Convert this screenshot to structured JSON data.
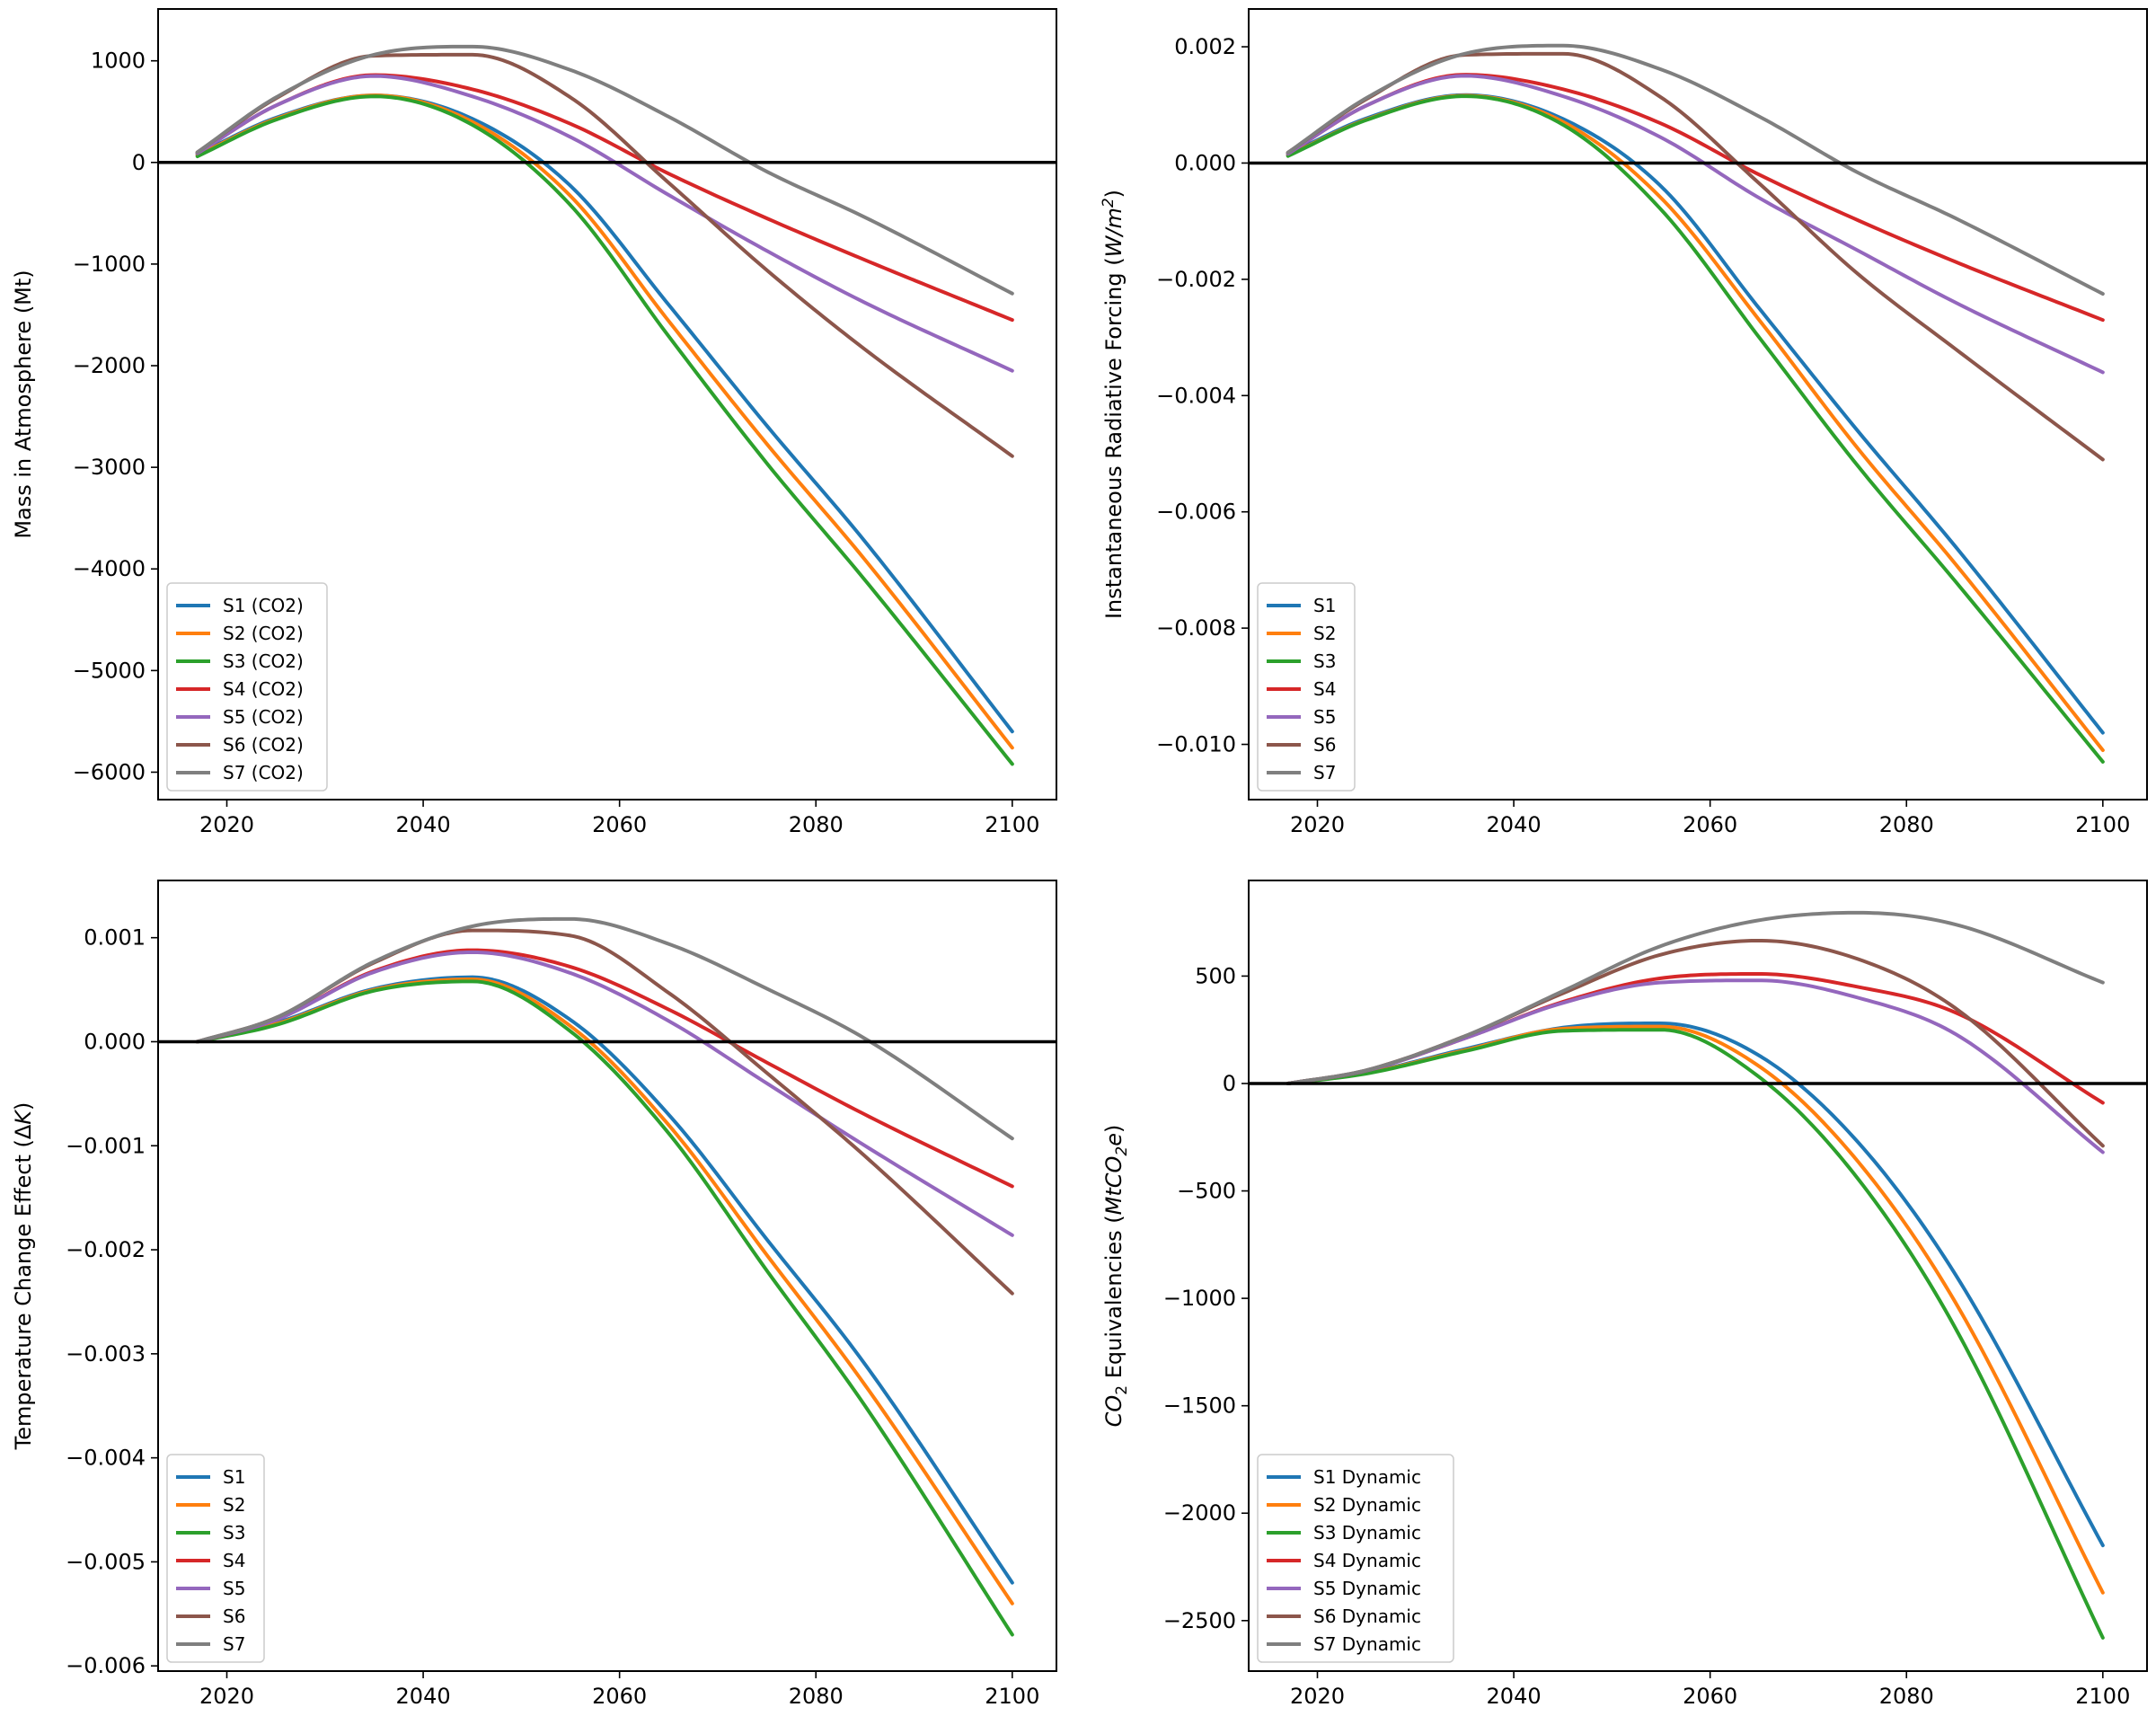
{
  "colors": [
    "#1f77b4",
    "#ff7f0e",
    "#2ca02c",
    "#d62728",
    "#9467bd",
    "#8c564b",
    "#7f7f7f"
  ],
  "chart_data": [
    {
      "type": "line",
      "ylabel": "Mass in Atmosphere (Mt)",
      "xlim": [
        2013,
        2104.5
      ],
      "ylim": [
        -6270,
        1510
      ],
      "xticks": [
        2020,
        2040,
        2060,
        2080,
        2100
      ],
      "xtick_labels": [
        "2020",
        "2040",
        "2060",
        "2080",
        "2100"
      ],
      "yticks": [
        1000,
        0,
        -1000,
        -2000,
        -3000,
        -4000,
        -5000,
        -6000
      ],
      "ytick_labels": [
        "1000",
        "0",
        "−1000",
        "−2000",
        "−3000",
        "−4000",
        "−5000",
        "−6000"
      ],
      "zero_line": true,
      "grid": false,
      "legend_position": "lower-left",
      "x": [
        2017,
        2025,
        2035,
        2045,
        2055,
        2065,
        2075,
        2085,
        2100
      ],
      "series": [
        {
          "name": "S1 (CO2)",
          "values": [
            80,
            440,
            660,
            430,
            -230,
            -1400,
            -2590,
            -3730,
            -5600
          ]
        },
        {
          "name": "S2 (CO2)",
          "values": [
            70,
            430,
            660,
            400,
            -330,
            -1560,
            -2770,
            -3910,
            -5760
          ]
        },
        {
          "name": "S3 (CO2)",
          "values": [
            60,
            420,
            650,
            370,
            -420,
            -1710,
            -2960,
            -4110,
            -5920
          ]
        },
        {
          "name": "S4 (CO2)",
          "values": [
            90,
            560,
            860,
            720,
            380,
            -110,
            -550,
            -960,
            -1550
          ]
        },
        {
          "name": "S5 (CO2)",
          "values": [
            90,
            560,
            850,
            650,
            250,
            -320,
            -870,
            -1380,
            -2050
          ]
        },
        {
          "name": "S6 (CO2)",
          "values": [
            100,
            630,
            1050,
            1060,
            640,
            -200,
            -1060,
            -1840,
            -2890
          ]
        },
        {
          "name": "S7 (CO2)",
          "values": [
            100,
            640,
            1060,
            1140,
            910,
            450,
            -90,
            -540,
            -1290
          ]
        }
      ]
    },
    {
      "type": "line",
      "ylabel": "Instantaneous Radiative Forcing (W/m²)",
      "xlim": [
        2013,
        2104.5
      ],
      "ylim": [
        -0.01095,
        0.00265
      ],
      "xticks": [
        2020,
        2040,
        2060,
        2080,
        2100
      ],
      "xtick_labels": [
        "2020",
        "2040",
        "2060",
        "2080",
        "2100"
      ],
      "yticks": [
        0.002,
        0.0,
        -0.002,
        -0.004,
        -0.006,
        -0.008,
        -0.01
      ],
      "ytick_labels": [
        "0.002",
        "0.000",
        "−0.002",
        "−0.004",
        "−0.006",
        "−0.008",
        "−0.010"
      ],
      "zero_line": true,
      "grid": false,
      "legend_position": "lower-left",
      "x": [
        2017,
        2025,
        2035,
        2045,
        2055,
        2065,
        2075,
        2085,
        2100
      ],
      "series": [
        {
          "name": "S1",
          "values": [
            0.00015,
            0.00077,
            0.00117,
            0.00076,
            -0.0004,
            -0.0025,
            -0.0046,
            -0.0066,
            -0.0098
          ]
        },
        {
          "name": "S2",
          "values": [
            0.00013,
            0.00075,
            0.00116,
            0.00071,
            -0.0006,
            -0.0027,
            -0.0049,
            -0.0069,
            -0.0101
          ]
        },
        {
          "name": "S3",
          "values": [
            0.00012,
            0.00074,
            0.00115,
            0.00066,
            -0.0008,
            -0.003,
            -0.0052,
            -0.0072,
            -0.0103
          ]
        },
        {
          "name": "S4",
          "values": [
            0.00016,
            0.00099,
            0.00152,
            0.00127,
            0.00068,
            -0.0002,
            -0.00098,
            -0.0017,
            -0.0027
          ]
        },
        {
          "name": "S5",
          "values": [
            0.00016,
            0.00099,
            0.0015,
            0.00115,
            0.00044,
            -0.0006,
            -0.0015,
            -0.0024,
            -0.0036
          ]
        },
        {
          "name": "S6",
          "values": [
            0.00018,
            0.0011,
            0.00186,
            0.00188,
            0.00113,
            -0.00035,
            -0.0019,
            -0.0032,
            -0.0051
          ]
        },
        {
          "name": "S7",
          "values": [
            0.00018,
            0.00112,
            0.00188,
            0.00202,
            0.00161,
            0.0008,
            -0.00016,
            -0.00095,
            -0.00225
          ]
        }
      ]
    },
    {
      "type": "line",
      "ylabel": "Temperature Change Effect (ΔK)",
      "xlim": [
        2013,
        2104.5
      ],
      "ylim": [
        -0.00605,
        0.00155
      ],
      "xticks": [
        2020,
        2040,
        2060,
        2080,
        2100
      ],
      "xtick_labels": [
        "2020",
        "2040",
        "2060",
        "2080",
        "2100"
      ],
      "yticks": [
        0.001,
        0.0,
        -0.001,
        -0.002,
        -0.003,
        -0.004,
        -0.005,
        -0.006
      ],
      "ytick_labels": [
        "0.001",
        "0.000",
        "−0.001",
        "−0.002",
        "−0.003",
        "−0.004",
        "−0.005",
        "−0.006"
      ],
      "zero_line": true,
      "grid": false,
      "legend_position": "lower-left",
      "x": [
        2017,
        2025,
        2035,
        2045,
        2055,
        2065,
        2075,
        2085,
        2100
      ],
      "series": [
        {
          "name": "S1",
          "values": [
            0,
            0.00018,
            0.00051,
            0.00062,
            0.00021,
            -0.0007,
            -0.0019,
            -0.0031,
            -0.0052
          ]
        },
        {
          "name": "S2",
          "values": [
            0,
            0.00017,
            0.0005,
            0.0006,
            0.00015,
            -0.0008,
            -0.00205,
            -0.0033,
            -0.0054
          ]
        },
        {
          "name": "S3",
          "values": [
            0,
            0.00016,
            0.00049,
            0.00058,
            0.0001,
            -0.00088,
            -0.0022,
            -0.0035,
            -0.0057
          ]
        },
        {
          "name": "S4",
          "values": [
            0,
            0.00021,
            0.00068,
            0.00088,
            0.00072,
            0.00031,
            -0.0002,
            -0.0007,
            -0.00139
          ]
        },
        {
          "name": "S5",
          "values": [
            0,
            0.00021,
            0.00067,
            0.00086,
            0.00066,
            0.0002,
            -0.0004,
            -0.001,
            -0.00186
          ]
        },
        {
          "name": "S6",
          "values": [
            0,
            0.00023,
            0.00076,
            0.00107,
            0.00102,
            0.00047,
            -0.0003,
            -0.0011,
            -0.00242
          ]
        },
        {
          "name": "S7",
          "values": [
            0,
            0.00023,
            0.00077,
            0.00111,
            0.00118,
            0.00094,
            0.00051,
            3e-05,
            -0.00093
          ]
        }
      ]
    },
    {
      "type": "line",
      "ylabel": "CO₂ Equivalencies (MtCO₂e)",
      "xlim": [
        2013,
        2104.5
      ],
      "ylim": [
        -2735,
        945
      ],
      "xticks": [
        2020,
        2040,
        2060,
        2080,
        2100
      ],
      "xtick_labels": [
        "2020",
        "2040",
        "2060",
        "2080",
        "2100"
      ],
      "yticks": [
        500,
        0,
        -500,
        -1000,
        -1500,
        -2000,
        -2500
      ],
      "ytick_labels": [
        "500",
        "0",
        "−500",
        "−1000",
        "−1500",
        "−2000",
        "−2500"
      ],
      "zero_line": true,
      "grid": false,
      "legend_position": "lower-left",
      "x": [
        2017,
        2025,
        2035,
        2045,
        2055,
        2065,
        2075,
        2085,
        2100
      ],
      "series": [
        {
          "name": "S1 Dynamic",
          "values": [
            0,
            50,
            160,
            260,
            280,
            130,
            -270,
            -890,
            -2150
          ]
        },
        {
          "name": "S2 Dynamic",
          "values": [
            0,
            48,
            155,
            255,
            265,
            80,
            -360,
            -1020,
            -2370
          ]
        },
        {
          "name": "S3 Dynamic",
          "values": [
            0,
            46,
            150,
            245,
            250,
            30,
            -440,
            -1140,
            -2580
          ]
        },
        {
          "name": "S4 Dynamic",
          "values": [
            0,
            60,
            210,
            380,
            490,
            510,
            450,
            330,
            -90
          ]
        },
        {
          "name": "S5 Dynamic",
          "values": [
            0,
            60,
            210,
            375,
            470,
            480,
            400,
            230,
            -320
          ]
        },
        {
          "name": "S6 Dynamic",
          "values": [
            0,
            62,
            220,
            420,
            600,
            665,
            580,
            350,
            -290
          ]
        },
        {
          "name": "S7 Dynamic",
          "values": [
            0,
            62,
            220,
            430,
            640,
            760,
            795,
            740,
            470
          ]
        }
      ]
    }
  ]
}
